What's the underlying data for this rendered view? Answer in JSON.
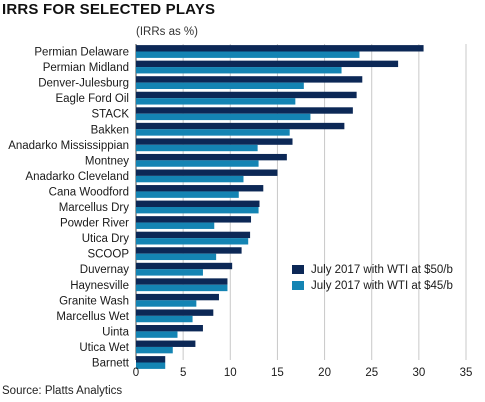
{
  "title": "IRRS FOR SELECTED PLAYS",
  "subtitle": "(IRRs as %)",
  "source": "Source: Platts Analytics",
  "colors": {
    "series_50": "#0c2856",
    "series_45": "#1484b3",
    "grid": "#c8c8c8",
    "axis": "#444444"
  },
  "chart_data": {
    "type": "bar",
    "orientation": "horizontal",
    "categories": [
      "Permian Delaware",
      "Permian Midland",
      "Denver-Julesburg",
      "Eagle Ford Oil",
      "STACK",
      "Bakken",
      "Anadarko Mississippian",
      "Montney",
      "Anadarko Cleveland",
      "Cana Woodford",
      "Marcellus Dry",
      "Powder River",
      "Utica Dry",
      "SCOOP",
      "Duvernay",
      "Haynesville",
      "Granite Wash",
      "Marcellus Wet",
      "Uinta",
      "Utica Wet",
      "Barnett"
    ],
    "series": [
      {
        "name": "July 2017 with WTI at $50/b",
        "color": "#0c2856",
        "values": [
          30.5,
          27.8,
          24.0,
          23.4,
          23.0,
          22.1,
          16.6,
          16.0,
          15.0,
          13.5,
          13.1,
          12.2,
          12.1,
          11.2,
          10.2,
          9.7,
          8.8,
          8.2,
          7.1,
          6.3,
          3.1
        ]
      },
      {
        "name": "July 2017 with WTI at $45/b",
        "color": "#1484b3",
        "values": [
          23.7,
          21.8,
          17.8,
          16.9,
          18.5,
          16.3,
          12.9,
          13.0,
          11.4,
          10.9,
          13.0,
          8.3,
          11.9,
          8.5,
          7.1,
          9.7,
          6.4,
          6.0,
          4.4,
          3.9,
          3.1
        ]
      }
    ],
    "xlim": [
      0,
      35
    ],
    "xticks": [
      0,
      5,
      10,
      15,
      20,
      25,
      30,
      35
    ],
    "xlabel": "",
    "ylabel": "",
    "grid": "vertical",
    "legend_position": "lower-right"
  }
}
